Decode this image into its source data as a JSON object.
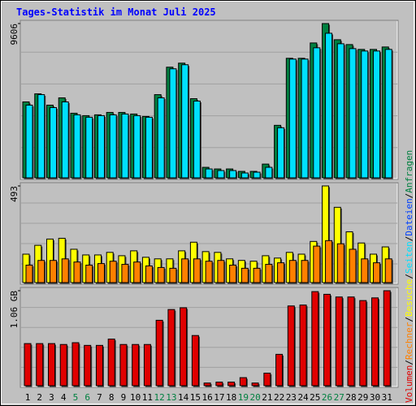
{
  "title": "Tages-Statistik im Monat Juli 2025",
  "legend_separator": "/",
  "chart_data": [
    {
      "type": "bar",
      "ylim": [
        0,
        9606
      ],
      "yticks": [
        9606
      ],
      "series": [
        {
          "name": "Anfragen",
          "color": "#008040",
          "values": [
            4727,
            5230,
            4526,
            4979,
            4023,
            3872,
            3923,
            4073,
            4073,
            3973,
            3822,
            5180,
            6890,
            7141,
            4928,
            654,
            553,
            553,
            402,
            402,
            855,
            3269,
            7443,
            7443,
            8398,
            9606,
            8600,
            8298,
            7996,
            7996,
            8147
          ]
        },
        {
          "name": "Seiten",
          "color": "#00e0ff",
          "values": [
            4526,
            5180,
            4375,
            4727,
            3923,
            3772,
            3872,
            3923,
            3973,
            3872,
            3772,
            4979,
            6789,
            7041,
            4778,
            553,
            453,
            453,
            302,
            352,
            654,
            3118,
            7393,
            7393,
            8097,
            9002,
            8348,
            8046,
            7896,
            7896,
            7996
          ]
        }
      ],
      "legend_only": [
        {
          "name": "Dateien",
          "color": "#0040ff"
        }
      ]
    },
    {
      "type": "bar",
      "ylim": [
        0,
        493
      ],
      "yticks": [
        493
      ],
      "series": [
        {
          "name": "Besuche",
          "color": "#ffff00",
          "values": [
            145,
            190,
            222,
            226,
            170,
            141,
            141,
            154,
            137,
            162,
            129,
            121,
            121,
            162,
            206,
            158,
            154,
            121,
            113,
            109,
            137,
            125,
            154,
            145,
            210,
            493,
            384,
            259,
            202,
            145,
            182
          ]
        },
        {
          "name": "Rechner",
          "color": "#ff8000",
          "values": [
            89,
            113,
            113,
            121,
            105,
            89,
            97,
            109,
            93,
            105,
            85,
            77,
            73,
            121,
            121,
            109,
            113,
            89,
            73,
            73,
            93,
            101,
            113,
            113,
            186,
            214,
            198,
            170,
            121,
            101,
            121
          ]
        }
      ]
    },
    {
      "type": "bar",
      "ylim": [
        0,
        1.06
      ],
      "yticks": [
        {
          "value": 1.06,
          "label": "1.06 GB"
        }
      ],
      "categories": [
        1,
        2,
        3,
        4,
        5,
        6,
        7,
        8,
        9,
        10,
        11,
        12,
        13,
        14,
        15,
        16,
        17,
        18,
        19,
        20,
        21,
        22,
        23,
        24,
        25,
        26,
        27,
        28,
        29,
        30,
        31
      ],
      "highlight_categories": [
        5,
        6,
        12,
        13,
        19,
        20,
        26,
        27
      ],
      "highlight_color": "#008040",
      "series": [
        {
          "name": "Volumen",
          "color": "#e00000",
          "values": [
            0.47,
            0.47,
            0.47,
            0.46,
            0.48,
            0.45,
            0.45,
            0.52,
            0.46,
            0.46,
            0.46,
            0.73,
            0.85,
            0.87,
            0.56,
            0.03,
            0.04,
            0.04,
            0.09,
            0.03,
            0.14,
            0.35,
            0.89,
            0.9,
            1.05,
            1.02,
            0.99,
            0.99,
            0.95,
            0.98,
            1.06
          ]
        }
      ]
    }
  ]
}
